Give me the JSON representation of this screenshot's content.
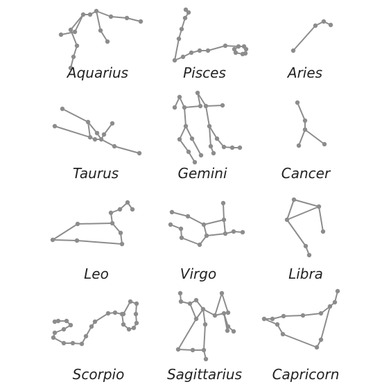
{
  "colors": {
    "line": "#8c8c8c",
    "star": "#8c8c8c",
    "text": "#222222",
    "background": "#ffffff"
  },
  "constellations": [
    {
      "name": "Aquarius"
    },
    {
      "name": "Pisces"
    },
    {
      "name": "Aries"
    },
    {
      "name": "Taurus"
    },
    {
      "name": "Gemini"
    },
    {
      "name": "Cancer"
    },
    {
      "name": "Leo"
    },
    {
      "name": "Virgo"
    },
    {
      "name": "Libra"
    },
    {
      "name": "Scorpio"
    },
    {
      "name": "Sagittarius"
    },
    {
      "name": "Capricorn"
    }
  ]
}
